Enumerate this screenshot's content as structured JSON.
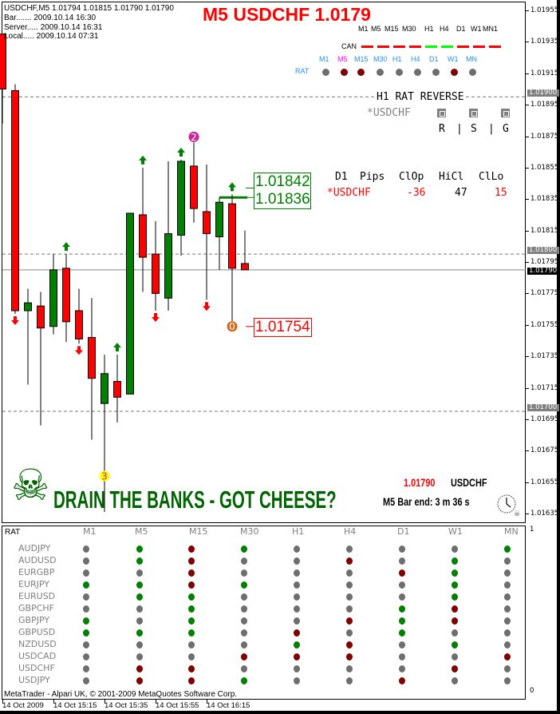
{
  "info": {
    "symbol_line": "USDCHF,M5  1.01794 1.01815 1.01790 1.01790",
    "bar_line": "Bar....... 2009.10.14 16:30",
    "server_line": "Server..... 2009.10.14 16:31",
    "local_line": "Local..... 2009.10.14 07:31"
  },
  "title": "M5 USDCHF 1.0179",
  "can_panel": {
    "timeframes": [
      "M1",
      "M5",
      "M15",
      "M30",
      "H1",
      "H4",
      "D1",
      "W1",
      "MN1"
    ],
    "label": "CAN",
    "states": [
      "red",
      "red",
      "red",
      "red",
      "green",
      "green",
      "red",
      "red",
      "red"
    ]
  },
  "rat_panel": {
    "label": "RAT",
    "timeframes": [
      "M1",
      "M5",
      "M15",
      "M30",
      "H1",
      "H4",
      "D1",
      "W1",
      "MN"
    ],
    "highlighted_timeframe": "M5",
    "states": [
      "gray",
      "red",
      "red",
      "gray",
      "gray",
      "gray",
      "gray",
      "red",
      "gray"
    ]
  },
  "reverse_panel": {
    "title": "H1 RAT REVERSE",
    "symbol": "*USDCHF",
    "columns": [
      "R",
      "|",
      "S",
      "|",
      "G"
    ]
  },
  "pips_table": {
    "headers": [
      "D1",
      "Pips",
      "ClOp",
      "HiCl",
      "ClLo"
    ],
    "row": {
      "symbol": "*USDCHF",
      "clop": "-36",
      "hicl": "47",
      "cllo": "15"
    }
  },
  "price_labels": {
    "high_a": "1.01842",
    "high_b": "1.01836",
    "low": "1.01754"
  },
  "bottom_info": {
    "price": "1.01790",
    "symbol": "USDCHF",
    "bar_end": "M5 Bar end: 3 m 36 s",
    "slogan": "DRAIN THE BANKS - GOT CHEESE?"
  },
  "colors": {
    "bull": "#008000",
    "bear": "#ff0000",
    "neutral_dot": "#6e6e6e",
    "green_dot": "#008000",
    "red_dot": "#800000",
    "accent_blue": "#1e90ff"
  },
  "chart": {
    "candles": [
      {
        "o": 1.0194,
        "h": 1.0194,
        "l": 1.01883,
        "c": 1.01905
      },
      {
        "o": 1.01904,
        "h": 1.01908,
        "l": 1.01762,
        "c": 1.01764
      },
      {
        "o": 1.01764,
        "h": 1.01778,
        "l": 1.01717,
        "c": 1.01769
      },
      {
        "o": 1.01767,
        "h": 1.01776,
        "l": 1.01691,
        "c": 1.01753
      },
      {
        "o": 1.01754,
        "h": 1.018,
        "l": 1.01749,
        "c": 1.0179
      },
      {
        "o": 1.01791,
        "h": 1.018,
        "l": 1.01744,
        "c": 1.01757
      },
      {
        "o": 1.01764,
        "h": 1.01778,
        "l": 1.01743,
        "c": 1.01746
      },
      {
        "o": 1.01747,
        "h": 1.01772,
        "l": 1.01682,
        "c": 1.01721
      },
      {
        "o": 1.01705,
        "h": 1.01736,
        "l": 1.01636,
        "c": 1.01724
      },
      {
        "o": 1.01719,
        "h": 1.01736,
        "l": 1.01693,
        "c": 1.01709
      },
      {
        "o": 1.01711,
        "h": 1.01826,
        "l": 1.01711,
        "c": 1.01826
      },
      {
        "o": 1.01825,
        "h": 1.01855,
        "l": 1.01776,
        "c": 1.01798
      },
      {
        "o": 1.018,
        "h": 1.01821,
        "l": 1.01764,
        "c": 1.01775
      },
      {
        "o": 1.01772,
        "h": 1.01859,
        "l": 1.01764,
        "c": 1.01813
      },
      {
        "o": 1.01812,
        "h": 1.0186,
        "l": 1.01799,
        "c": 1.01859
      },
      {
        "o": 1.01856,
        "h": 1.01871,
        "l": 1.0182,
        "c": 1.01829
      },
      {
        "o": 1.01827,
        "h": 1.01857,
        "l": 1.01771,
        "c": 1.01813
      },
      {
        "o": 1.01811,
        "h": 1.01836,
        "l": 1.0179,
        "c": 1.01833
      },
      {
        "o": 1.01832,
        "h": 1.01838,
        "l": 1.01754,
        "c": 1.01791
      },
      {
        "o": 1.01794,
        "h": 1.01815,
        "l": 1.0179,
        "c": 1.0179
      }
    ],
    "up_arrows": [
      5,
      9,
      11,
      14,
      18
    ],
    "down_arrows": [
      1,
      6,
      12,
      16
    ],
    "markers": [
      {
        "candle": 15,
        "label": "2",
        "color": "#cc2299",
        "at": "high"
      },
      {
        "candle": 18,
        "label": "0",
        "color": "#d2691e",
        "at": "low"
      },
      {
        "candle": 8,
        "label": "3",
        "color": "#ffff00",
        "at": "low"
      }
    ],
    "level_lines": [
      1.019,
      1.018,
      1.017
    ],
    "current_price": 1.0179,
    "resistance_level": 1.01836,
    "price_axis": [
      "1.01955",
      "1.01935",
      "1.01915",
      "1.01895",
      "1.01875",
      "1.01855",
      "1.01835",
      "1.01815",
      "1.01795",
      "1.01775",
      "1.01755",
      "1.01735",
      "1.01715",
      "1.01695",
      "1.01675",
      "1.01655",
      "1.01635"
    ],
    "price_axis_highlight": [
      "1.01900",
      "1.01800",
      "1.01700"
    ],
    "price_axis_current": "1.01790",
    "time_axis": [
      "14 Oct 2009",
      "14 Oct 15:15",
      "14 Oct 15:35",
      "14 Oct 15:55",
      "14 Oct 16:15"
    ]
  },
  "rat_matrix": {
    "title": "RAT",
    "columns": [
      "M1",
      "M5",
      "M15",
      "M30",
      "H1",
      "H4",
      "D1",
      "W1",
      "MN"
    ],
    "rows": [
      {
        "pair": "AUDJPY",
        "states": [
          "gray",
          "green",
          "red",
          "green",
          "gray",
          "gray",
          "gray",
          "gray",
          "green"
        ]
      },
      {
        "pair": "AUDUSD",
        "states": [
          "gray",
          "green",
          "red",
          "gray",
          "gray",
          "red",
          "gray",
          "green",
          "gray"
        ]
      },
      {
        "pair": "EURGBP",
        "states": [
          "gray",
          "gray",
          "red",
          "gray",
          "gray",
          "gray",
          "red",
          "green",
          "gray"
        ]
      },
      {
        "pair": "EURJPY",
        "states": [
          "green",
          "green",
          "red",
          "green",
          "gray",
          "gray",
          "gray",
          "green",
          "gray"
        ]
      },
      {
        "pair": "EURUSD",
        "states": [
          "gray",
          "green",
          "green",
          "gray",
          "gray",
          "gray",
          "gray",
          "green",
          "gray"
        ]
      },
      {
        "pair": "GBPCHF",
        "states": [
          "gray",
          "gray",
          "green",
          "gray",
          "gray",
          "gray",
          "green",
          "red",
          "gray"
        ]
      },
      {
        "pair": "GBPJPY",
        "states": [
          "green",
          "gray",
          "green",
          "gray",
          "gray",
          "red",
          "green",
          "red",
          "gray"
        ]
      },
      {
        "pair": "GBPUSD",
        "states": [
          "green",
          "green",
          "green",
          "gray",
          "red",
          "gray",
          "green",
          "gray",
          "gray"
        ]
      },
      {
        "pair": "NZDUSD",
        "states": [
          "gray",
          "gray",
          "gray",
          "gray",
          "green",
          "red",
          "gray",
          "green",
          "gray"
        ]
      },
      {
        "pair": "USDCAD",
        "states": [
          "gray",
          "gray",
          "gray",
          "red",
          "red",
          "red",
          "gray",
          "gray",
          "red"
        ]
      },
      {
        "pair": "USDCHF",
        "states": [
          "gray",
          "red",
          "red",
          "gray",
          "gray",
          "gray",
          "gray",
          "red",
          "gray"
        ]
      },
      {
        "pair": "USDJPY",
        "states": [
          "gray",
          "red",
          "red",
          "green",
          "gray",
          "gray",
          "red",
          "gray",
          "gray"
        ]
      }
    ],
    "axis_top": "1",
    "axis_bottom": "0",
    "footer": "MetaTrader - Alpari UK, © 2001-2009 MetaQuotes Software Corp."
  }
}
